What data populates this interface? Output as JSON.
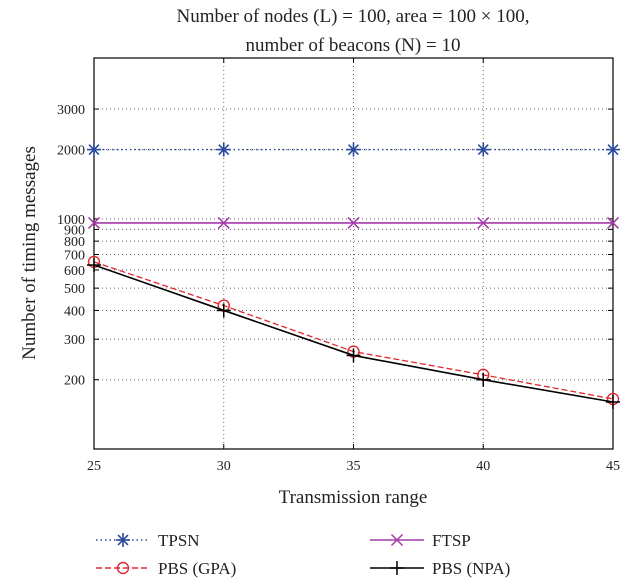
{
  "chart_data": {
    "type": "line",
    "title_lines": [
      "Number of nodes (L) = 100, area = 100 × 100,",
      "number of beacons (N) = 10"
    ],
    "xlabel": "Transmission range",
    "ylabel": "Number of timing messages",
    "x": [
      25,
      30,
      35,
      40,
      45
    ],
    "xlim": [
      25,
      45
    ],
    "ylim": [
      100,
      5000
    ],
    "yscale": "log",
    "x_ticks": [
      "25",
      "30",
      "35",
      "40",
      "45"
    ],
    "y_ticks": [
      {
        "value": 200,
        "label": "200"
      },
      {
        "value": 300,
        "label": "300"
      },
      {
        "value": 400,
        "label": "400"
      },
      {
        "value": 500,
        "label": "500"
      },
      {
        "value": 600,
        "label": "600"
      },
      {
        "value": 700,
        "label": "700"
      },
      {
        "value": 800,
        "label": "800"
      },
      {
        "value": 900,
        "label": "900"
      },
      {
        "value": 1000,
        "label": "1000"
      },
      {
        "value": 2000,
        "label": "2000"
      },
      {
        "value": 3000,
        "label": "3000"
      }
    ],
    "grid": true,
    "legend_position": "bottom",
    "series": [
      {
        "name": "TPSN",
        "values": [
          2000,
          2000,
          2000,
          2000,
          2000
        ],
        "color": "#2a4a9a",
        "marker": "asterisk",
        "line": "dotted"
      },
      {
        "name": "FTSP",
        "values": [
          960,
          960,
          960,
          960,
          960
        ],
        "color": "#a43aa8",
        "marker": "x",
        "line": "solid"
      },
      {
        "name": "PBS (GPA)",
        "values": [
          650,
          420,
          265,
          210,
          165
        ],
        "color": "#e0282e",
        "marker": "circle",
        "line": "dashed"
      },
      {
        "name": "PBS (NPA)",
        "values": [
          630,
          400,
          255,
          200,
          160
        ],
        "color": "#000000",
        "marker": "plus",
        "line": "solid"
      }
    ]
  }
}
